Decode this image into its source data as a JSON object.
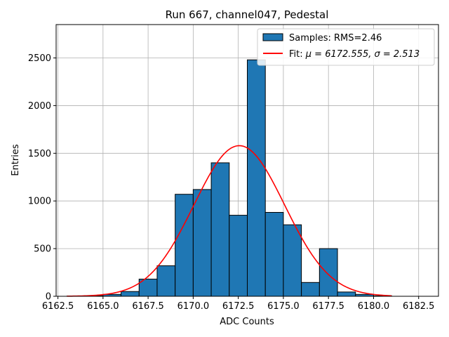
{
  "chart_data": {
    "type": "bar",
    "title": "Run 667, channel047, Pedestal",
    "xlabel": "ADC Counts",
    "ylabel": "Entries",
    "xlim": [
      6162.4,
      6183.6
    ],
    "ylim": [
      0,
      2850
    ],
    "xticks": [
      6162.5,
      6165.0,
      6167.5,
      6170.0,
      6172.5,
      6175.0,
      6177.5,
      6180.0,
      6182.5
    ],
    "xtick_labels": [
      "6162.5",
      "6165.0",
      "6167.5",
      "6170.0",
      "6172.5",
      "6175.0",
      "6177.5",
      "6180.0",
      "6182.5"
    ],
    "yticks": [
      0,
      500,
      1000,
      1500,
      2000,
      2500
    ],
    "ytick_labels": [
      "0",
      "500",
      "1000",
      "1500",
      "2000",
      "2500"
    ],
    "grid": true,
    "legend_position": "top-right",
    "histogram": {
      "name": "Samples: RMS=2.46",
      "color": "#1f77b4",
      "edge_color": "#000000",
      "bin_edges": [
        6163.0,
        6164.0,
        6165.0,
        6166.0,
        6167.0,
        6168.0,
        6169.0,
        6170.0,
        6171.0,
        6172.0,
        6173.0,
        6174.0,
        6175.0,
        6176.0,
        6177.0,
        6178.0,
        6179.0,
        6180.0,
        6181.0
      ],
      "counts": [
        2,
        6,
        20,
        50,
        180,
        320,
        1070,
        1120,
        1400,
        850,
        2480,
        880,
        750,
        145,
        500,
        45,
        20,
        5
      ]
    },
    "fit": {
      "name_prefix": "Fit: ",
      "name_math": "μ = 6172.555, σ = 2.513",
      "color": "#ff0000",
      "mu": 6172.555,
      "sigma": 2.513,
      "amplitude": 1580,
      "x_range": [
        6163.0,
        6181.0
      ]
    }
  }
}
